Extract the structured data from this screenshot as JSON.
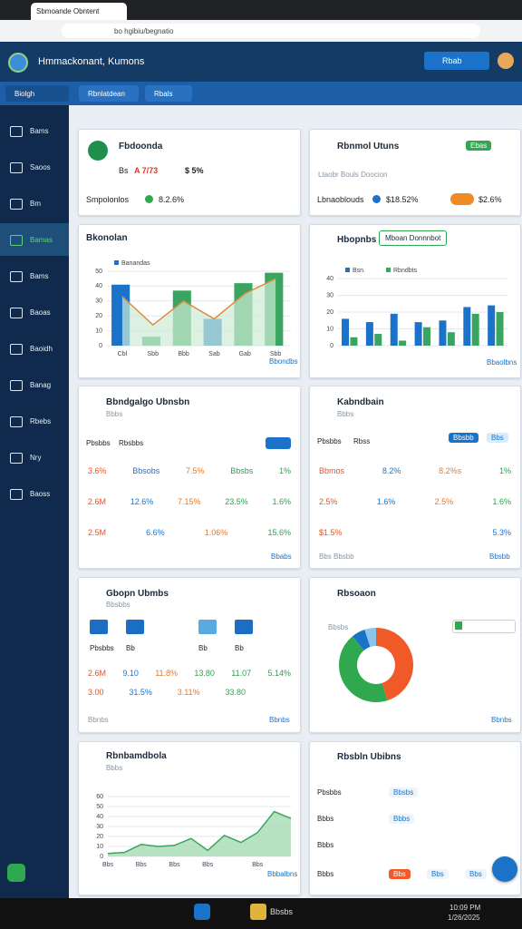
{
  "browser": {
    "tab": "Sbmoande Obntent",
    "url": "bo hgibiu/begnatio"
  },
  "header": {
    "title": "Hmmackonant, Kumons",
    "button": "Rbab"
  },
  "toolbar": {
    "items": [
      "Biolgh",
      "Rbnlatdean",
      "Rbals"
    ]
  },
  "sidebar": {
    "items": [
      "Bams",
      "Saoos",
      "Bm",
      "Bamas",
      "Bams",
      "Baoas",
      "Baoidh",
      "Banag",
      "Rbebs",
      "Nry",
      "Baoss"
    ],
    "active": 3
  },
  "summary": {
    "title": "Fbdoonda",
    "label": "Bs",
    "value": "A 7/73",
    "change": "$ 5%",
    "sub_label": "Smpolonlos",
    "sub_value": "8.2.6%"
  },
  "status": {
    "title": "Rbnmol Utuns",
    "badge": "Ebas",
    "note": "Ltaobr Bouls Doocion",
    "label": "Lbnaoblouds",
    "value_a": "$18.52%",
    "value_b": "$2.6%"
  },
  "table_a": {
    "title": "Bbndgalgo Ubnsbn",
    "subtitle": "Bbbs",
    "header": [
      "Pbsbbs",
      "Rbsbbs"
    ],
    "rows": [
      [
        "3.6%",
        "Bbsobs",
        "7.5%",
        "Bbsbs",
        "1%"
      ],
      [
        "2.6M",
        "12.6%",
        "7.15%",
        "23.5%",
        "1.6%"
      ],
      [
        "2.5M",
        "6.6%",
        "1.06%",
        "15.6%"
      ]
    ],
    "footer": "Bbabs"
  },
  "table_b": {
    "title": "Kabndbain",
    "subtitle": "Bbbs",
    "header": [
      "Pbsbbs",
      "Rbss"
    ],
    "buttons": [
      "Bbsbb",
      "Bbs"
    ],
    "rows": [
      [
        "Bbmos",
        "8.2%",
        "8.2%s",
        "1%"
      ],
      [
        "2.5%",
        "1.6%",
        "2.5%",
        "1.6%"
      ],
      [
        "$1.5%",
        "5.3%"
      ]
    ],
    "footer": [
      "Bbs Bbsbb",
      "Bbsbb"
    ]
  },
  "stats": {
    "title": "Gbopn Ubmbs",
    "subtitle": "Bbsbbs",
    "labels": [
      "Pbsbbs",
      "Bb",
      "Bb",
      "Bb"
    ],
    "rows": [
      [
        "2.6M",
        "9.10",
        "11.8%",
        "13.80",
        "11.07",
        "5.14%"
      ],
      [
        "3.00",
        "31.5%",
        "3.11%",
        "33.80"
      ]
    ],
    "footer": [
      "Bbnbs",
      "Bbnbs"
    ]
  },
  "tasks": {
    "title": "Rbsbln Ubibns",
    "rows": [
      [
        "Pbsbbs",
        "Bbsbs"
      ],
      [
        "Bbbs",
        "Bbbs"
      ],
      [
        "Bbbs"
      ],
      [
        "Bbbs",
        "Bbs",
        "Bbs",
        "Bbs"
      ]
    ]
  },
  "taskbar": {
    "app": "Bbsbs",
    "time": "10:09 PM",
    "date": "1/26/2025"
  },
  "chart_data": [
    {
      "type": "bar",
      "title": "Bkonolan",
      "categories": [
        "Cbl",
        "Sbb",
        "Bbb",
        "Sab",
        "Gab",
        "Sbb"
      ],
      "series": [
        {
          "name": "Banandas",
          "color": "#1a73c8",
          "colors": [
            "#1a73c8",
            "#3aa560",
            "#3aa560",
            "#1a73c8",
            "#3aa560",
            "#3aa560"
          ],
          "values": [
            41,
            6,
            37,
            18,
            42,
            49
          ]
        },
        {
          "kind": "line",
          "color": "#e08a3c",
          "area_color": "#cdebd6",
          "values": [
            33,
            14,
            30,
            18,
            35,
            45
          ]
        }
      ],
      "ylim": [
        0,
        50
      ],
      "yticks": [
        0,
        10,
        20,
        30,
        40,
        50
      ],
      "grid": true,
      "footer": "Bbondbs"
    },
    {
      "type": "bar",
      "title": "Hbopnbs",
      "button": "Mboan Donnnbot",
      "categories": [
        null,
        null,
        null,
        null,
        null,
        null,
        null
      ],
      "series": [
        {
          "name": "Bsn.",
          "color": "#1a73c8",
          "values": [
            16,
            14,
            19,
            14,
            15,
            23,
            24
          ]
        },
        {
          "name": "Rbndbts",
          "color": "#3aa560",
          "values": [
            5,
            7,
            3,
            11,
            8,
            19,
            20
          ]
        }
      ],
      "ylim": [
        0,
        40
      ],
      "yticks": [
        0,
        10,
        20,
        30,
        40
      ],
      "grid": true,
      "footer": "Bbaolbns"
    },
    {
      "type": "pie",
      "title": "Rbsoaon",
      "legend_label": "Bbsbs",
      "values": [
        45,
        44,
        6,
        5
      ],
      "colors": [
        "#f05a28",
        "#2fa84f",
        "#1a73c8",
        "#8cc4ea"
      ],
      "footer": "Bbnbs"
    },
    {
      "type": "area",
      "title": "Rbnbamdbola",
      "subtitle": "Bbbs",
      "categories": [
        "Bbs",
        null,
        "Bbs",
        null,
        "Bbs",
        null,
        "Bbs",
        null,
        null,
        "Bbs",
        null,
        null
      ],
      "values": [
        3,
        4,
        12,
        10,
        11,
        18,
        6,
        21,
        14,
        24,
        45,
        38
      ],
      "color": "#3aa560",
      "area_color": "#a6dcb4",
      "ylim": [
        0,
        60
      ],
      "yticks": [
        0,
        10,
        20,
        30,
        40,
        50,
        60
      ],
      "grid": true,
      "footer": "Bbbalbns"
    }
  ]
}
